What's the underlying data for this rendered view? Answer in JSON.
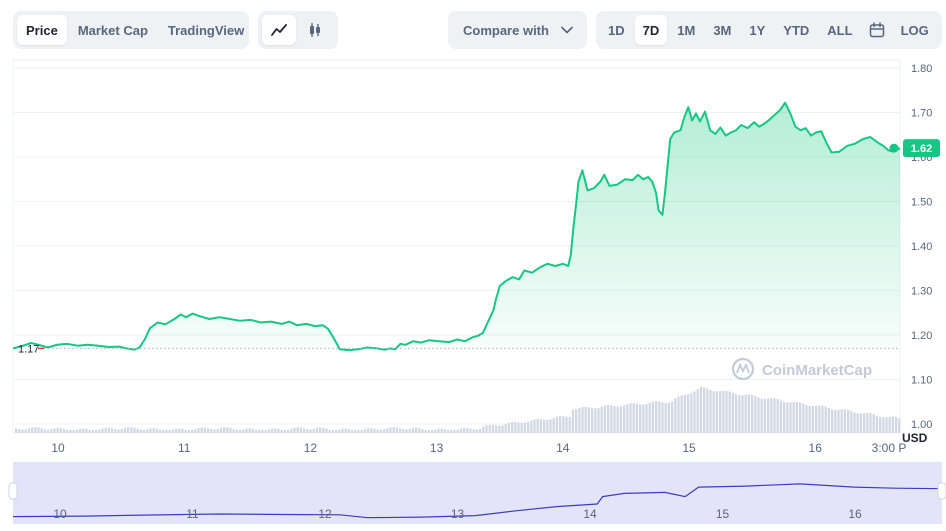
{
  "toolbar": {
    "tabs": [
      "Price",
      "Market Cap",
      "TradingView"
    ],
    "active_tab": "Price",
    "chart_types": [
      "line-chart-icon",
      "candlestick-icon"
    ],
    "compare_label": "Compare with",
    "ranges": [
      "1D",
      "7D",
      "1M",
      "3M",
      "1Y",
      "YTD",
      "ALL"
    ],
    "active_range": "7D",
    "calendar_icon": "calendar-icon",
    "log_label": "LOG"
  },
  "colors": {
    "line": "#16c784",
    "accent": "#16c784",
    "volume": "#cfd6e4",
    "navigator_fill": "#e4e4f9",
    "navigator_line": "#3d3dbf",
    "grid": "#eff2f5",
    "text": "#58667e"
  },
  "chart_data": {
    "type": "area",
    "watermark": "CoinMarketCap",
    "currency": "USD",
    "ylim": [
      1.0,
      1.8
    ],
    "yticks": [
      "1.80",
      "1.70",
      "1.60",
      "1.50",
      "1.40",
      "1.30",
      "1.20",
      "1.10",
      "1.00"
    ],
    "xticks": [
      "10",
      "11",
      "12",
      "13",
      "14",
      "15",
      "16",
      "3:00 P"
    ],
    "navigator_xticks": [
      "10",
      "11",
      "12",
      "13",
      "14",
      "15",
      "16"
    ],
    "open_price_label": "1.17",
    "open_price": 1.17,
    "current_price_label": "1.62",
    "current_price": 1.62,
    "x_start": 9.78,
    "x_end": 16.65,
    "price": [
      [
        9.78,
        1.17
      ],
      [
        9.85,
        1.175
      ],
      [
        9.92,
        1.182
      ],
      [
        9.98,
        1.178
      ],
      [
        10.05,
        1.172
      ],
      [
        10.12,
        1.178
      ],
      [
        10.2,
        1.18
      ],
      [
        10.28,
        1.176
      ],
      [
        10.36,
        1.178
      ],
      [
        10.44,
        1.176
      ],
      [
        10.52,
        1.173
      ],
      [
        10.6,
        1.174
      ],
      [
        10.66,
        1.17
      ],
      [
        10.72,
        1.167
      ],
      [
        10.76,
        1.172
      ],
      [
        10.8,
        1.19
      ],
      [
        10.84,
        1.215
      ],
      [
        10.9,
        1.228
      ],
      [
        10.96,
        1.224
      ],
      [
        11.03,
        1.236
      ],
      [
        11.08,
        1.246
      ],
      [
        11.12,
        1.24
      ],
      [
        11.17,
        1.248
      ],
      [
        11.22,
        1.243
      ],
      [
        11.3,
        1.236
      ],
      [
        11.38,
        1.24
      ],
      [
        11.46,
        1.236
      ],
      [
        11.54,
        1.232
      ],
      [
        11.62,
        1.234
      ],
      [
        11.7,
        1.228
      ],
      [
        11.78,
        1.23
      ],
      [
        11.86,
        1.225
      ],
      [
        11.92,
        1.23
      ],
      [
        11.98,
        1.222
      ],
      [
        12.05,
        1.225
      ],
      [
        12.12,
        1.22
      ],
      [
        12.18,
        1.222
      ],
      [
        12.22,
        1.214
      ],
      [
        12.27,
        1.19
      ],
      [
        12.31,
        1.168
      ],
      [
        12.38,
        1.166
      ],
      [
        12.46,
        1.168
      ],
      [
        12.52,
        1.172
      ],
      [
        12.6,
        1.17
      ],
      [
        12.66,
        1.167
      ],
      [
        12.7,
        1.17
      ],
      [
        12.74,
        1.168
      ],
      [
        12.78,
        1.18
      ],
      [
        12.82,
        1.178
      ],
      [
        12.88,
        1.186
      ],
      [
        12.94,
        1.183
      ],
      [
        13.0,
        1.188
      ],
      [
        13.08,
        1.186
      ],
      [
        13.16,
        1.184
      ],
      [
        13.22,
        1.19
      ],
      [
        13.28,
        1.186
      ],
      [
        13.34,
        1.195
      ],
      [
        13.38,
        1.198
      ],
      [
        13.42,
        1.205
      ],
      [
        13.46,
        1.23
      ],
      [
        13.5,
        1.255
      ],
      [
        13.52,
        1.28
      ],
      [
        13.55,
        1.31
      ],
      [
        13.6,
        1.322
      ],
      [
        13.65,
        1.33
      ],
      [
        13.7,
        1.325
      ],
      [
        13.74,
        1.345
      ],
      [
        13.8,
        1.34
      ],
      [
        13.86,
        1.352
      ],
      [
        13.92,
        1.36
      ],
      [
        13.98,
        1.355
      ],
      [
        14.04,
        1.36
      ],
      [
        14.08,
        1.355
      ],
      [
        14.1,
        1.38
      ],
      [
        14.12,
        1.44
      ],
      [
        14.14,
        1.49
      ],
      [
        14.16,
        1.545
      ],
      [
        14.19,
        1.57
      ],
      [
        14.23,
        1.525
      ],
      [
        14.28,
        1.53
      ],
      [
        14.33,
        1.545
      ],
      [
        14.36,
        1.56
      ],
      [
        14.4,
        1.535
      ],
      [
        14.46,
        1.538
      ],
      [
        14.52,
        1.55
      ],
      [
        14.58,
        1.548
      ],
      [
        14.62,
        1.56
      ],
      [
        14.66,
        1.55
      ],
      [
        14.7,
        1.555
      ],
      [
        14.73,
        1.545
      ],
      [
        14.76,
        1.52
      ],
      [
        14.78,
        1.48
      ],
      [
        14.81,
        1.47
      ],
      [
        14.83,
        1.52
      ],
      [
        14.85,
        1.58
      ],
      [
        14.87,
        1.64
      ],
      [
        14.9,
        1.655
      ],
      [
        14.95,
        1.66
      ],
      [
        14.98,
        1.69
      ],
      [
        15.01,
        1.712
      ],
      [
        15.04,
        1.682
      ],
      [
        15.07,
        1.698
      ],
      [
        15.1,
        1.68
      ],
      [
        15.14,
        1.702
      ],
      [
        15.18,
        1.66
      ],
      [
        15.22,
        1.652
      ],
      [
        15.26,
        1.666
      ],
      [
        15.3,
        1.648
      ],
      [
        15.34,
        1.655
      ],
      [
        15.38,
        1.66
      ],
      [
        15.42,
        1.672
      ],
      [
        15.47,
        1.665
      ],
      [
        15.52,
        1.678
      ],
      [
        15.56,
        1.668
      ],
      [
        15.6,
        1.675
      ],
      [
        15.64,
        1.684
      ],
      [
        15.68,
        1.695
      ],
      [
        15.72,
        1.705
      ],
      [
        15.76,
        1.722
      ],
      [
        15.8,
        1.698
      ],
      [
        15.84,
        1.668
      ],
      [
        15.88,
        1.66
      ],
      [
        15.92,
        1.665
      ],
      [
        15.96,
        1.648
      ],
      [
        16.0,
        1.655
      ],
      [
        16.04,
        1.658
      ],
      [
        16.08,
        1.632
      ],
      [
        16.12,
        1.61
      ],
      [
        16.18,
        1.612
      ],
      [
        16.24,
        1.625
      ],
      [
        16.3,
        1.63
      ],
      [
        16.36,
        1.64
      ],
      [
        16.42,
        1.645
      ],
      [
        16.48,
        1.632
      ],
      [
        16.52,
        1.625
      ],
      [
        16.56,
        1.615
      ],
      [
        16.6,
        1.612
      ],
      [
        16.65,
        1.62
      ]
    ],
    "navigator_level": [
      [
        9.78,
        0.14
      ],
      [
        10.3,
        0.15
      ],
      [
        10.8,
        0.17
      ],
      [
        11.3,
        0.19
      ],
      [
        11.8,
        0.18
      ],
      [
        12.2,
        0.175
      ],
      [
        12.4,
        0.12
      ],
      [
        12.8,
        0.13
      ],
      [
        13.2,
        0.16
      ],
      [
        13.5,
        0.25
      ],
      [
        13.8,
        0.33
      ],
      [
        14.1,
        0.38
      ],
      [
        14.14,
        0.52
      ],
      [
        14.3,
        0.58
      ],
      [
        14.6,
        0.6
      ],
      [
        14.75,
        0.52
      ],
      [
        14.85,
        0.7
      ],
      [
        15.2,
        0.72
      ],
      [
        15.6,
        0.76
      ],
      [
        16.0,
        0.7
      ],
      [
        16.3,
        0.68
      ],
      [
        16.65,
        0.67
      ]
    ]
  }
}
